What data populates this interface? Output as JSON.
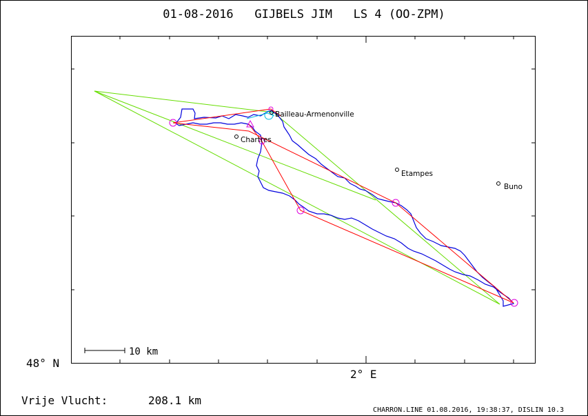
{
  "title": "01-08-2016   GIJBELS JIM   LS 4 (OO-ZPM)",
  "axes": {
    "lat_label": "48° N",
    "lon_label": "2° E"
  },
  "scale_bar": {
    "label": "10 km"
  },
  "distance": {
    "label": "Vrije Vlucht:",
    "value": "208.1 km"
  },
  "footer": "CHARRON.LINE 01.08.2016, 19:38:37, DISLIN 10.3",
  "places": [
    {
      "name": "Bailleau-Armenonville"
    },
    {
      "name": "Chartres"
    },
    {
      "name": "Etampes"
    },
    {
      "name": "Buno"
    }
  ],
  "colors": {
    "track": "#0000dd",
    "free_flight": "#ff0000",
    "triangle": "#66dd00",
    "turnpoint": "#dd00dd",
    "frame": "#000000"
  }
}
